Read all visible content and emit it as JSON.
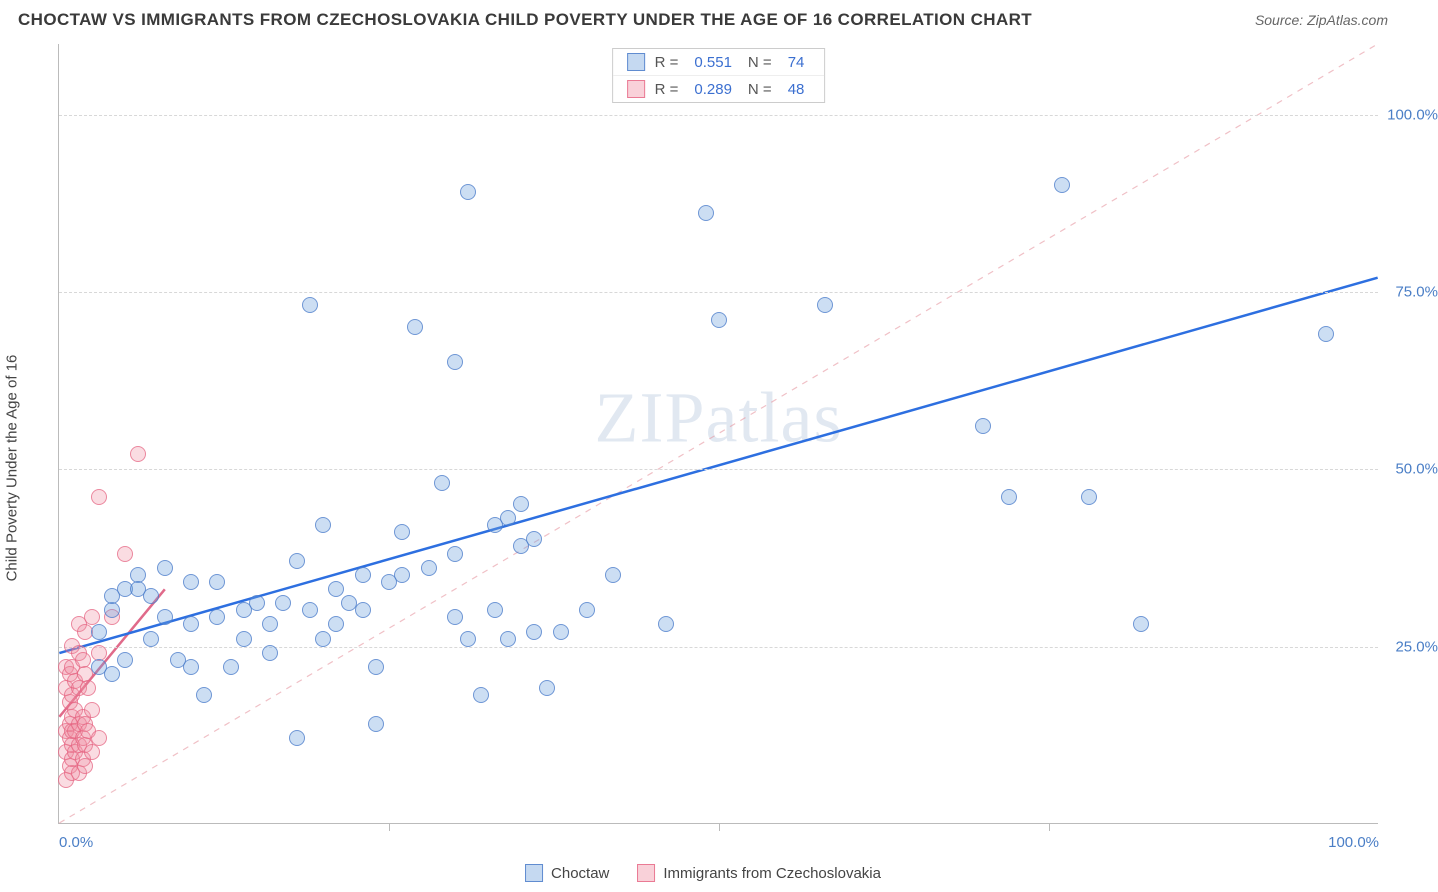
{
  "title": "CHOCTAW VS IMMIGRANTS FROM CZECHOSLOVAKIA CHILD POVERTY UNDER THE AGE OF 16 CORRELATION CHART",
  "source": "Source: ZipAtlas.com",
  "ylabel": "Child Poverty Under the Age of 16",
  "watermark": "ZIPatlas",
  "chart": {
    "type": "scatter",
    "xlim": [
      0,
      100
    ],
    "ylim": [
      0,
      110
    ],
    "ytick_labels": [
      "25.0%",
      "50.0%",
      "75.0%",
      "100.0%"
    ],
    "ytick_values": [
      25,
      50,
      75,
      100
    ],
    "xtick_values": [
      0,
      25,
      50,
      75,
      100
    ],
    "xtick_label_left": "0.0%",
    "xtick_label_right": "100.0%",
    "grid_color": "#d8d8d8",
    "background_color": "#ffffff",
    "axis_color": "#bbbbbb",
    "marker_radius": 8,
    "diag_line": {
      "color": "rgba(230,150,160,0.6)",
      "dash": "6,6",
      "x1": 0,
      "y1": 0,
      "x2": 100,
      "y2": 110
    }
  },
  "legend_top": {
    "rows": [
      {
        "swatch": "blue",
        "r_label": "R =",
        "r_value": "0.551",
        "n_label": "N =",
        "n_value": "74"
      },
      {
        "swatch": "pink",
        "r_label": "R =",
        "r_value": "0.289",
        "n_label": "N =",
        "n_value": "48"
      }
    ]
  },
  "legend_bottom": {
    "items": [
      {
        "swatch": "blue",
        "label": "Choctaw"
      },
      {
        "swatch": "pink",
        "label": "Immigrants from Czechoslovakia"
      }
    ]
  },
  "series": {
    "blue": {
      "name": "Choctaw",
      "color_fill": "rgba(110,160,220,0.35)",
      "color_stroke": "rgba(70,120,200,0.7)",
      "regression": {
        "color": "#2d6fe0",
        "width": 2.5,
        "x1": 0,
        "y1": 24,
        "x2": 100,
        "y2": 77
      },
      "points": [
        [
          3,
          22
        ],
        [
          3,
          27
        ],
        [
          4,
          21
        ],
        [
          4,
          30
        ],
        [
          4,
          32
        ],
        [
          5,
          23
        ],
        [
          5,
          33
        ],
        [
          6,
          35
        ],
        [
          6,
          33
        ],
        [
          7,
          32
        ],
        [
          8,
          36
        ],
        [
          9,
          23
        ],
        [
          10,
          28
        ],
        [
          10,
          34
        ],
        [
          11,
          18
        ],
        [
          12,
          34
        ],
        [
          12,
          29
        ],
        [
          13,
          22
        ],
        [
          14,
          26
        ],
        [
          14,
          30
        ],
        [
          15,
          31
        ],
        [
          16,
          24
        ],
        [
          16,
          28
        ],
        [
          17,
          31
        ],
        [
          18,
          12
        ],
        [
          18,
          37
        ],
        [
          19,
          30
        ],
        [
          19,
          73
        ],
        [
          20,
          26
        ],
        [
          20,
          42
        ],
        [
          21,
          28
        ],
        [
          21,
          33
        ],
        [
          22,
          31
        ],
        [
          23,
          30
        ],
        [
          23,
          35
        ],
        [
          24,
          14
        ],
        [
          24,
          22
        ],
        [
          25,
          34
        ],
        [
          26,
          35
        ],
        [
          26,
          41
        ],
        [
          27,
          70
        ],
        [
          28,
          36
        ],
        [
          29,
          48
        ],
        [
          30,
          29
        ],
        [
          30,
          38
        ],
        [
          30,
          65
        ],
        [
          31,
          26
        ],
        [
          31,
          89
        ],
        [
          32,
          18
        ],
        [
          33,
          30
        ],
        [
          33,
          42
        ],
        [
          34,
          26
        ],
        [
          34,
          43
        ],
        [
          35,
          39
        ],
        [
          35,
          45
        ],
        [
          36,
          27
        ],
        [
          36,
          40
        ],
        [
          37,
          19
        ],
        [
          38,
          27
        ],
        [
          40,
          30
        ],
        [
          42,
          35
        ],
        [
          46,
          28
        ],
        [
          49,
          86
        ],
        [
          50,
          71
        ],
        [
          58,
          73
        ],
        [
          70,
          56
        ],
        [
          72,
          46
        ],
        [
          76,
          90
        ],
        [
          78,
          46
        ],
        [
          82,
          28
        ],
        [
          96,
          69
        ],
        [
          10,
          22
        ],
        [
          7,
          26
        ],
        [
          8,
          29
        ]
      ]
    },
    "pink": {
      "name": "Immigrants from Czechoslovakia",
      "color_fill": "rgba(240,140,160,0.30)",
      "color_stroke": "rgba(230,100,130,0.7)",
      "regression": {
        "color": "#e06a8a",
        "width": 2.5,
        "x1": 0,
        "y1": 15,
        "x2": 8,
        "y2": 33
      },
      "points": [
        [
          0.5,
          6
        ],
        [
          0.5,
          10
        ],
        [
          0.5,
          13
        ],
        [
          0.5,
          19
        ],
        [
          0.5,
          22
        ],
        [
          0.8,
          8
        ],
        [
          0.8,
          12
        ],
        [
          0.8,
          14
        ],
        [
          0.8,
          17
        ],
        [
          0.8,
          21
        ],
        [
          1,
          7
        ],
        [
          1,
          9
        ],
        [
          1,
          11
        ],
        [
          1,
          13
        ],
        [
          1,
          15
        ],
        [
          1,
          18
        ],
        [
          1,
          22
        ],
        [
          1,
          25
        ],
        [
          1.2,
          10
        ],
        [
          1.2,
          13
        ],
        [
          1.2,
          16
        ],
        [
          1.2,
          20
        ],
        [
          1.5,
          7
        ],
        [
          1.5,
          11
        ],
        [
          1.5,
          14
        ],
        [
          1.5,
          19
        ],
        [
          1.5,
          24
        ],
        [
          1.5,
          28
        ],
        [
          1.8,
          9
        ],
        [
          1.8,
          12
        ],
        [
          1.8,
          15
        ],
        [
          1.8,
          23
        ],
        [
          2,
          8
        ],
        [
          2,
          11
        ],
        [
          2,
          14
        ],
        [
          2,
          21
        ],
        [
          2,
          27
        ],
        [
          2.2,
          13
        ],
        [
          2.2,
          19
        ],
        [
          2.5,
          10
        ],
        [
          2.5,
          16
        ],
        [
          2.5,
          29
        ],
        [
          3,
          12
        ],
        [
          3,
          24
        ],
        [
          3,
          46
        ],
        [
          4,
          29
        ],
        [
          5,
          38
        ],
        [
          6,
          52
        ]
      ]
    }
  }
}
